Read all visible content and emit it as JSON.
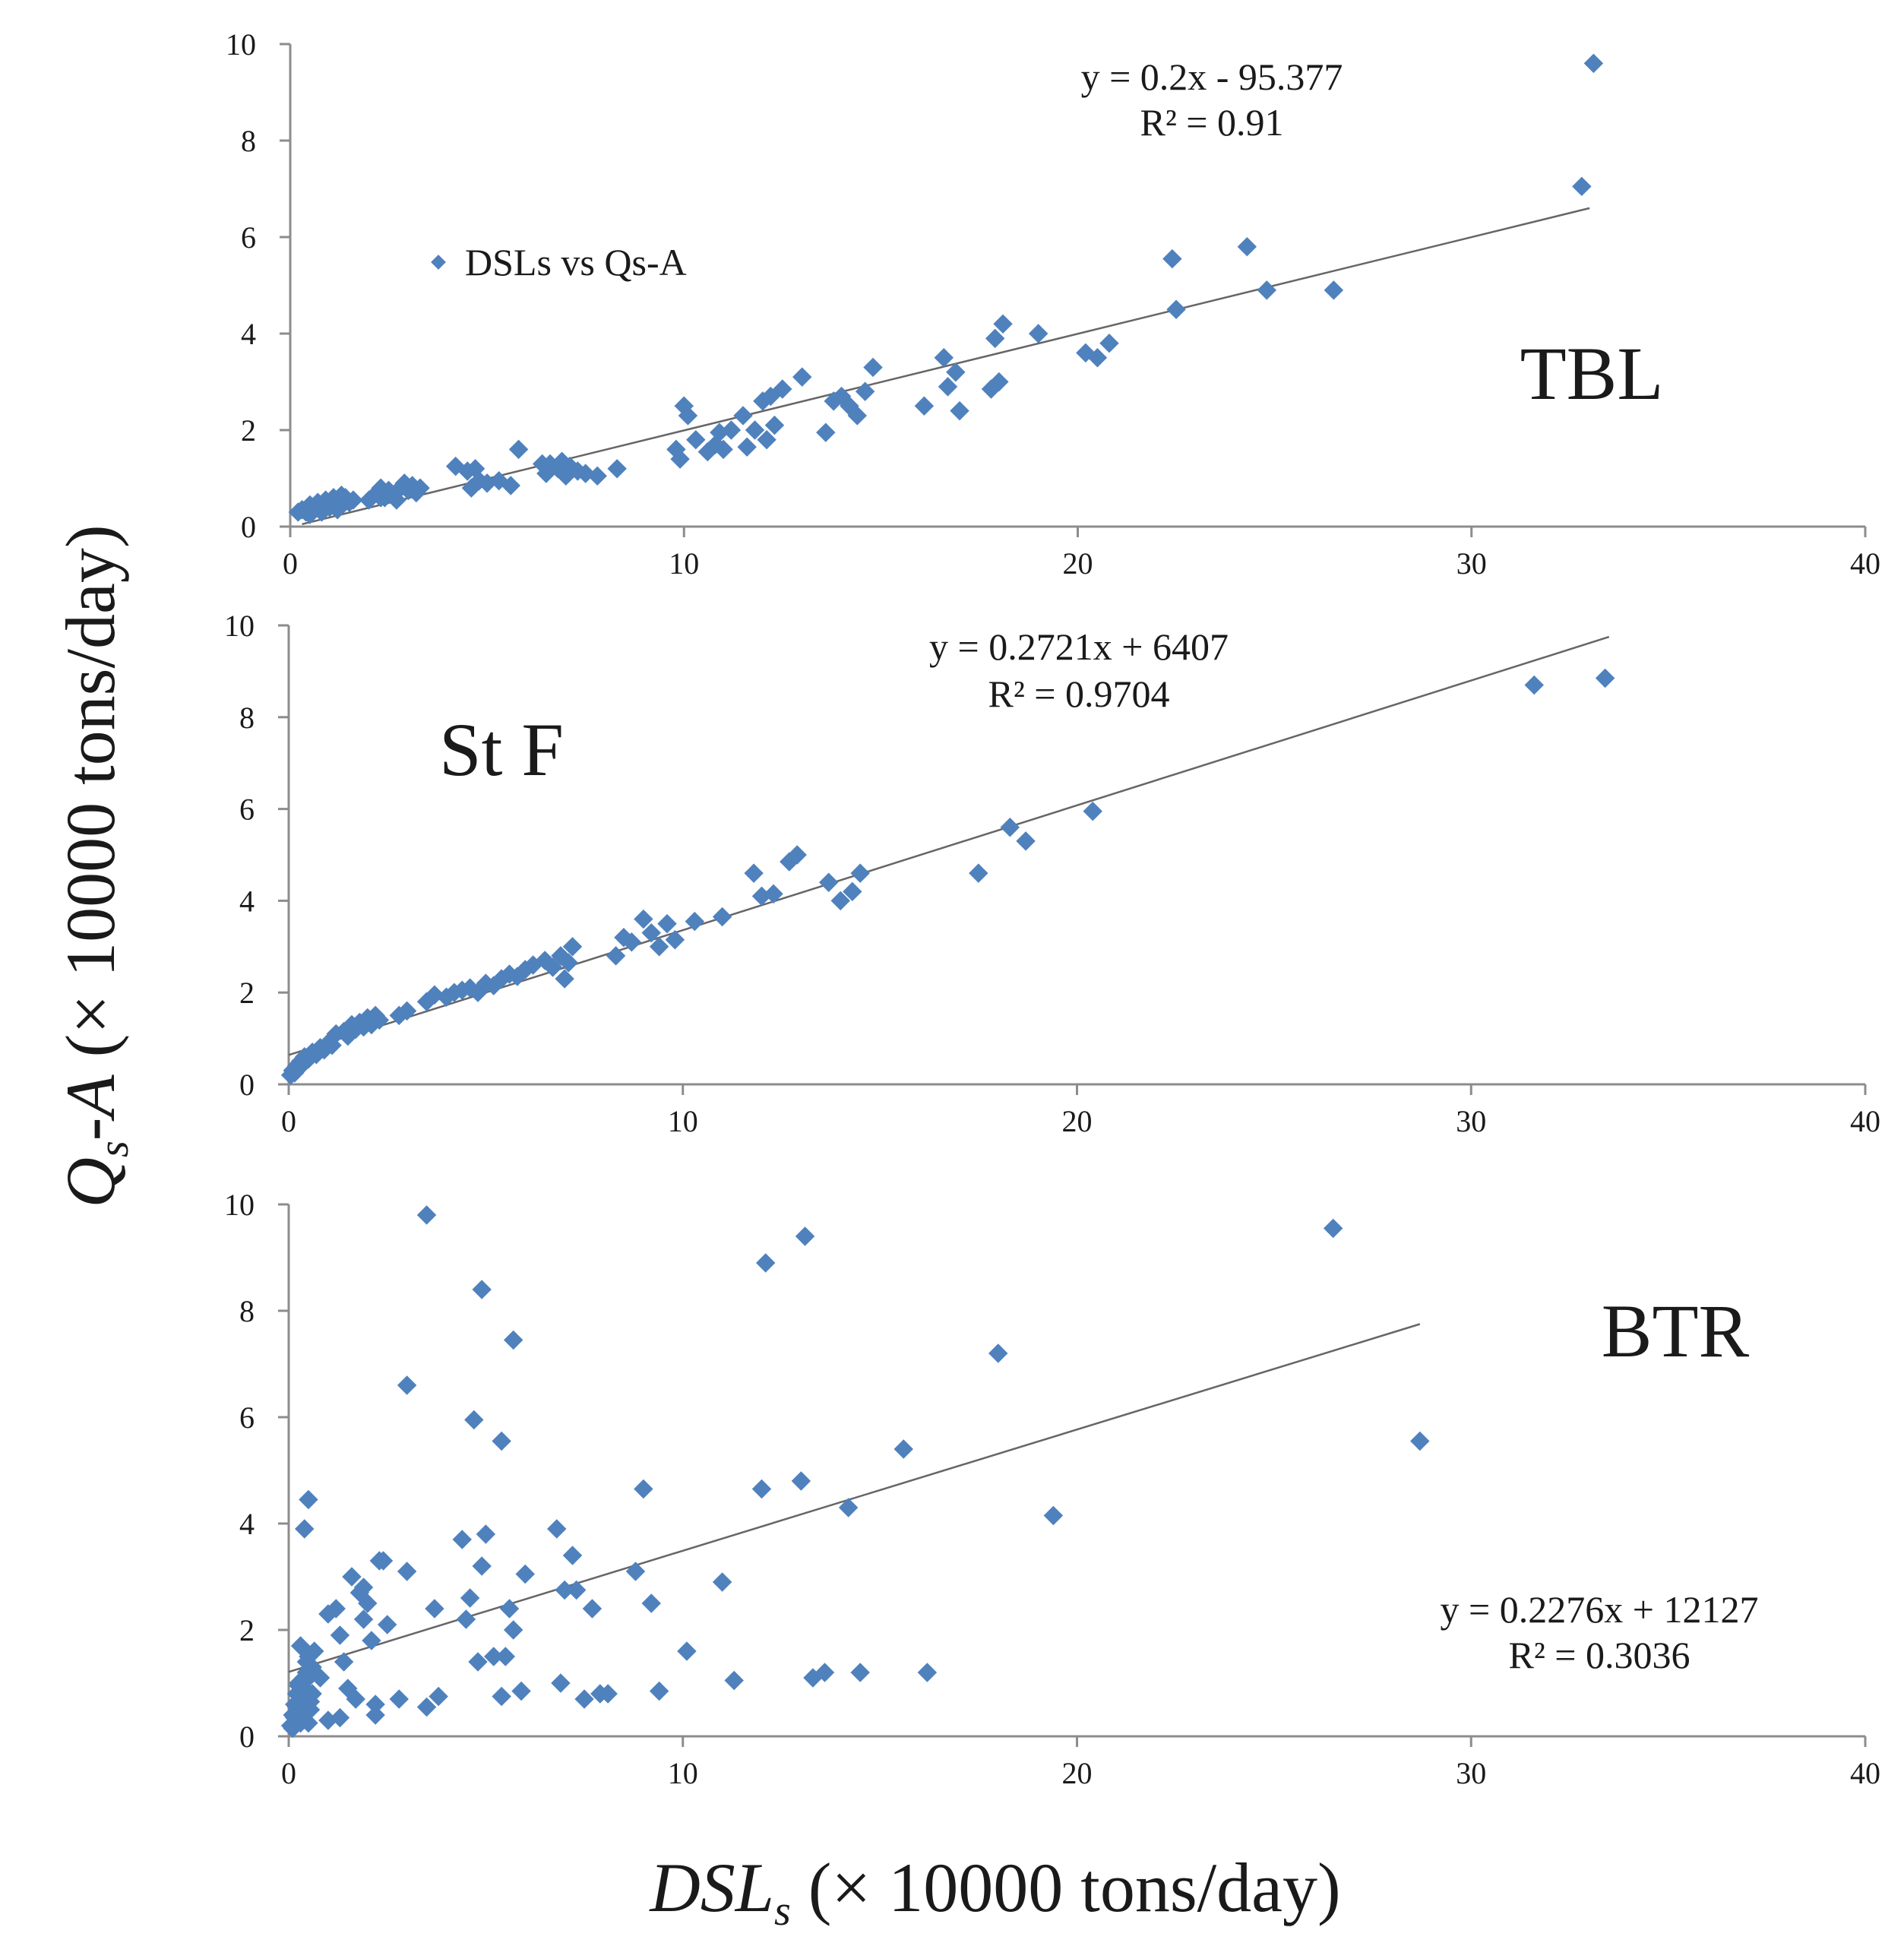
{
  "figure": {
    "y_axis_title": {
      "italic": "Qs",
      "sub": "s",
      "dash": "-",
      "italic2": "A",
      "rest": " (× 10000 tons/day)"
    },
    "x_axis_title": {
      "italic": "DSL",
      "sub": "s",
      "rest": " (× 10000 tons/day)"
    },
    "marker_color": "#4f81bd",
    "trend_color": "#666666"
  },
  "chart_data": [
    {
      "type": "scatter",
      "station": "TBL",
      "xlim": [
        0,
        40
      ],
      "ylim": [
        0,
        10
      ],
      "xticks": [
        0,
        10,
        20,
        30,
        40
      ],
      "yticks": [
        0,
        2,
        4,
        6,
        8,
        10
      ],
      "legend": "DSLs vs Qs-A",
      "equation": "y = 0.2x - 95.377",
      "r2": "R² = 0.91",
      "trend_line": {
        "x": [
          0.3,
          33
        ],
        "y": [
          0.05,
          6.6
        ]
      },
      "series": [
        {
          "name": "DSLs vs Qs-A",
          "x": [
            0.2,
            0.3,
            0.4,
            0.5,
            0.6,
            0.7,
            0.8,
            0.9,
            1.0,
            1.1,
            1.2,
            1.3,
            1.4,
            0.5,
            0.8,
            1.0,
            1.2,
            1.5,
            1.6,
            2.0,
            2.2,
            2.3,
            2.4,
            2.5,
            2.6,
            2.7,
            2.8,
            3.0,
            3.1,
            3.2,
            3.3,
            2.3,
            2.9,
            4.2,
            4.5,
            4.6,
            4.7,
            4.8,
            5.0,
            5.3,
            5.6,
            5.8,
            6.4,
            6.5,
            6.6,
            6.8,
            6.9,
            7.0,
            7.1,
            7.3,
            7.5,
            7.8,
            8.3,
            9.8,
            9.9,
            10.0,
            10.1,
            10.3,
            10.6,
            10.8,
            10.9,
            11.0,
            11.2,
            11.5,
            11.8,
            12.0,
            12.1,
            12.2,
            12.3,
            11.6,
            12.5,
            13.0,
            13.6,
            13.8,
            14.0,
            14.2,
            14.4,
            14.6,
            14.8,
            16.1,
            16.6,
            16.7,
            16.9,
            17.0,
            17.8,
            17.9,
            18.0,
            18.1,
            19.0,
            20.2,
            20.5,
            20.8,
            22.4,
            22.5,
            24.3,
            24.8,
            26.5,
            32.8,
            33.1
          ],
          "y": [
            0.3,
            0.35,
            0.3,
            0.45,
            0.4,
            0.5,
            0.4,
            0.55,
            0.45,
            0.6,
            0.5,
            0.65,
            0.6,
            0.25,
            0.3,
            0.4,
            0.35,
            0.5,
            0.55,
            0.55,
            0.7,
            0.8,
            0.6,
            0.75,
            0.65,
            0.55,
            0.8,
            0.75,
            0.85,
            0.7,
            0.8,
            0.6,
            0.9,
            1.25,
            1.15,
            0.8,
            1.2,
            0.95,
            0.9,
            0.95,
            0.85,
            1.6,
            1.3,
            1.1,
            1.3,
            1.2,
            1.35,
            1.05,
            1.25,
            1.15,
            1.1,
            1.05,
            1.2,
            1.6,
            1.4,
            2.5,
            2.3,
            1.8,
            1.55,
            1.7,
            1.95,
            1.6,
            2.0,
            2.3,
            2.0,
            2.6,
            1.8,
            2.7,
            2.1,
            1.65,
            2.85,
            3.1,
            1.95,
            2.6,
            2.7,
            2.5,
            2.3,
            2.8,
            3.3,
            2.5,
            3.5,
            2.9,
            3.2,
            2.4,
            2.85,
            3.9,
            3.0,
            4.2,
            4.0,
            3.6,
            3.5,
            3.8,
            5.55,
            4.5,
            5.8,
            4.9,
            4.9,
            7.05,
            9.6
          ]
        }
      ]
    },
    {
      "type": "scatter",
      "station": "St F",
      "xlim": [
        0,
        40
      ],
      "ylim": [
        0,
        10
      ],
      "xticks": [
        0,
        10,
        20,
        30,
        40
      ],
      "yticks": [
        0,
        2,
        4,
        6,
        8,
        10
      ],
      "equation": "y = 0.2721x + 6407",
      "r2": "R² = 0.9704",
      "trend_line": {
        "x": [
          0,
          33.5
        ],
        "y": [
          0.64,
          9.75
        ]
      },
      "series": [
        {
          "name": "DSLs vs Qs-A",
          "x": [
            0.05,
            0.1,
            0.15,
            0.2,
            0.25,
            0.3,
            0.35,
            0.4,
            0.5,
            0.6,
            0.7,
            0.8,
            0.9,
            1.0,
            1.1,
            1.2,
            1.4,
            1.5,
            1.6,
            1.7,
            1.8,
            1.9,
            2.0,
            2.1,
            2.2,
            2.3,
            2.8,
            3.0,
            3.5,
            3.7,
            4.0,
            4.2,
            4.4,
            4.6,
            4.8,
            5.0,
            5.2,
            5.4,
            5.6,
            5.8,
            6.0,
            6.2,
            6.5,
            6.7,
            6.9,
            7.0,
            7.1,
            7.2,
            8.3,
            8.5,
            8.7,
            9.0,
            9.2,
            9.4,
            9.6,
            9.8,
            10.3,
            11.0,
            11.8,
            12.0,
            12.3,
            12.7,
            12.9,
            13.7,
            14.0,
            14.3,
            14.5,
            17.5,
            18.3,
            18.7,
            20.4,
            31.6,
            33.4
          ],
          "y": [
            0.2,
            0.3,
            0.25,
            0.4,
            0.35,
            0.5,
            0.45,
            0.6,
            0.55,
            0.7,
            0.65,
            0.8,
            0.75,
            0.9,
            0.85,
            1.1,
            1.15,
            1.05,
            1.3,
            1.2,
            1.35,
            1.25,
            1.45,
            1.3,
            1.5,
            1.4,
            1.5,
            1.6,
            1.8,
            1.95,
            1.9,
            2.0,
            2.05,
            2.1,
            2.0,
            2.2,
            2.15,
            2.3,
            2.4,
            2.35,
            2.5,
            2.6,
            2.7,
            2.55,
            2.8,
            2.3,
            2.65,
            3.0,
            2.8,
            3.2,
            3.1,
            3.6,
            3.3,
            3.0,
            3.5,
            3.15,
            3.55,
            3.65,
            4.6,
            4.1,
            4.15,
            4.85,
            5.0,
            4.4,
            4.0,
            4.2,
            4.6,
            4.6,
            5.6,
            5.3,
            5.95,
            8.7,
            8.85
          ]
        }
      ]
    },
    {
      "type": "scatter",
      "station": "BTR",
      "xlim": [
        0,
        40
      ],
      "ylim": [
        0,
        10
      ],
      "xticks": [
        0,
        10,
        20,
        30,
        40
      ],
      "yticks": [
        0,
        2,
        4,
        6,
        8,
        10
      ],
      "equation": "y = 0.2276x + 12127",
      "r2": "R² = 0.3036",
      "trend_line": {
        "x": [
          0,
          28.7
        ],
        "y": [
          1.21,
          7.75
        ]
      },
      "series": [
        {
          "name": "DSLs vs Qs-A",
          "x": [
            0.05,
            0.1,
            0.15,
            0.2,
            0.25,
            0.3,
            0.35,
            0.4,
            0.45,
            0.5,
            0.55,
            0.6,
            0.1,
            0.2,
            0.3,
            0.4,
            0.5,
            0.15,
            0.25,
            0.35,
            0.45,
            0.55,
            0.3,
            0.5,
            0.6,
            0.65,
            0.8,
            1.0,
            1.2,
            1.3,
            1.4,
            1.5,
            1.6,
            1.8,
            1.9,
            2.0,
            2.1,
            2.2,
            2.3,
            2.4,
            2.5,
            1.0,
            1.3,
            1.7,
            1.9,
            2.2,
            2.8,
            3.0,
            3.5,
            3.7,
            3.8,
            4.4,
            4.5,
            4.6,
            4.8,
            4.9,
            5.0,
            5.2,
            5.4,
            5.5,
            5.6,
            5.7,
            5.9,
            6.0,
            6.8,
            6.9,
            7.0,
            7.2,
            7.3,
            7.5,
            7.7,
            7.9,
            8.1,
            8.8,
            9.0,
            9.2,
            9.4,
            10.1,
            11.0,
            11.3,
            12.0,
            13.0,
            13.3,
            13.6,
            14.2,
            14.5,
            15.6,
            16.2,
            18.0,
            19.4,
            26.5,
            28.7,
            3.5,
            4.9,
            5.7,
            12.1,
            13.1,
            4.7,
            5.4,
            3.0,
            0.4,
            0.5
          ],
          "y": [
            0.2,
            0.4,
            0.6,
            0.8,
            1.0,
            0.3,
            0.7,
            0.9,
            1.2,
            1.5,
            0.5,
            1.3,
            0.15,
            0.55,
            0.25,
            0.75,
            1.1,
            0.35,
            0.95,
            0.45,
            1.4,
            0.65,
            1.7,
            0.25,
            0.8,
            1.6,
            1.1,
            2.3,
            2.4,
            1.9,
            1.4,
            0.9,
            3.0,
            2.7,
            2.2,
            2.5,
            1.8,
            0.4,
            3.3,
            3.3,
            2.1,
            0.3,
            0.35,
            0.7,
            2.8,
            0.6,
            0.7,
            3.1,
            0.55,
            2.4,
            0.75,
            3.7,
            2.2,
            2.6,
            1.4,
            3.2,
            3.8,
            1.5,
            0.75,
            1.5,
            2.4,
            2.0,
            0.85,
            3.05,
            3.9,
            1.0,
            2.75,
            3.4,
            2.75,
            0.7,
            2.4,
            0.8,
            0.8,
            3.1,
            4.65,
            2.5,
            0.85,
            1.6,
            2.9,
            1.05,
            4.65,
            4.8,
            1.1,
            1.2,
            4.3,
            1.2,
            5.4,
            1.2,
            7.2,
            4.15,
            9.55,
            5.55,
            9.8,
            8.4,
            7.45,
            8.9,
            9.4,
            5.95,
            5.55,
            6.6,
            3.9,
            4.45
          ]
        }
      ]
    }
  ]
}
